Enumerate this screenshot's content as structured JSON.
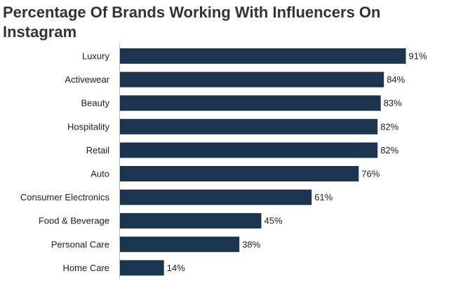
{
  "chart_data": {
    "type": "bar",
    "orientation": "horizontal",
    "title": "Percentage Of Brands Working With Influencers On Instagram",
    "categories": [
      "Luxury",
      "Activewear",
      "Beauty",
      "Hospitality",
      "Retail",
      "Auto",
      "Consumer Electronics",
      "Food & Beverage",
      "Personal Care",
      "Home Care"
    ],
    "values": [
      91,
      84,
      83,
      82,
      82,
      76,
      61,
      45,
      38,
      14
    ],
    "value_labels": [
      "91%",
      "84%",
      "83%",
      "82%",
      "82%",
      "76%",
      "61%",
      "45%",
      "38%",
      "14%"
    ],
    "xlim": [
      0,
      100
    ],
    "grid": false,
    "colors": {
      "bar": "#1b3550",
      "axis": "#bfbfbf"
    }
  }
}
